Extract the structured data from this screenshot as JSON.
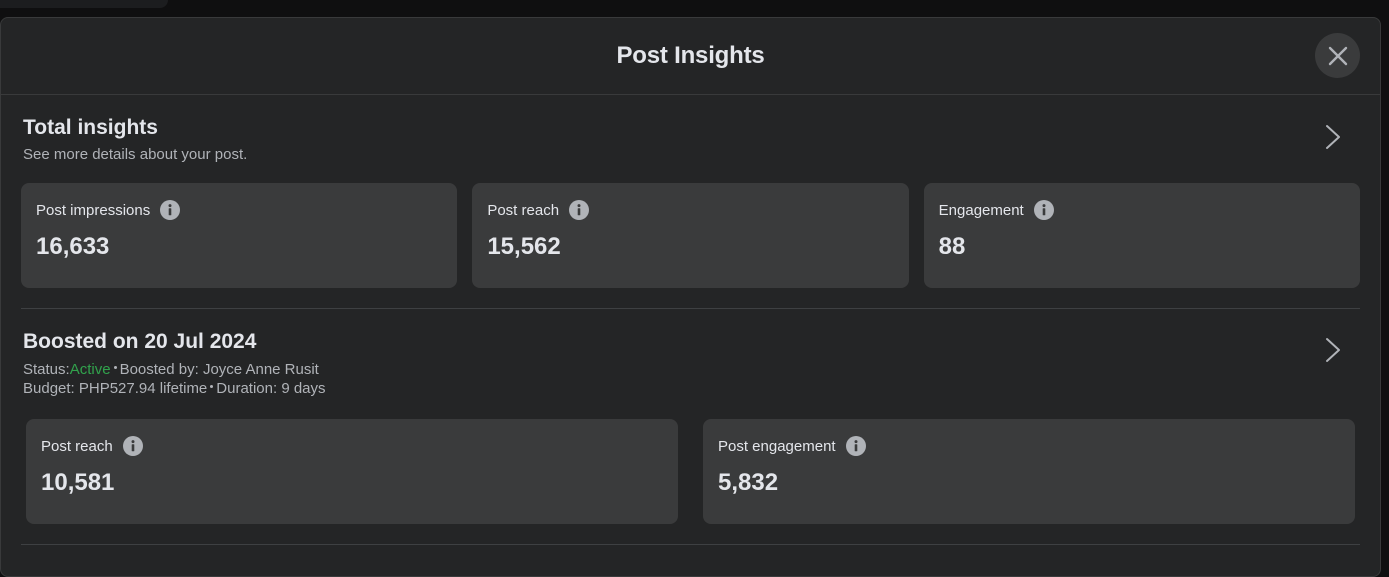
{
  "modal": {
    "title": "Post Insights",
    "close_icon": "close-icon"
  },
  "total": {
    "title": "Total insights",
    "subtitle": "See more details about your post.",
    "cards": [
      {
        "label": "Post impressions",
        "value": "16,633"
      },
      {
        "label": "Post reach",
        "value": "15,562"
      },
      {
        "label": "Engagement",
        "value": "88"
      }
    ]
  },
  "boost": {
    "title": "Boosted on 20 Jul 2024",
    "status_label": "Status:",
    "status_value": "Active",
    "boosted_by": "Boosted by: Joyce Anne Rusit",
    "budget": "Budget: PHP527.94 lifetime",
    "duration": "Duration: 9 days",
    "cards": [
      {
        "label": "Post reach",
        "value": "10,581"
      },
      {
        "label": "Post engagement",
        "value": "5,832"
      }
    ]
  },
  "colors": {
    "background": "#242526",
    "card": "#3a3b3c",
    "active": "#31a24c",
    "secondary_text": "#b0b3b8"
  }
}
